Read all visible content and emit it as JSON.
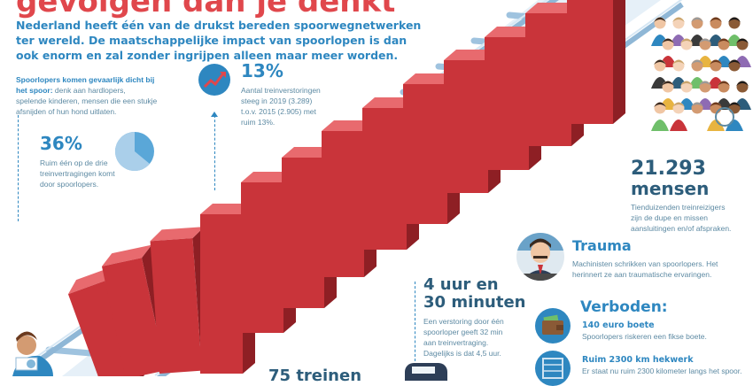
{
  "title": "gevolgen dan je denkt",
  "intro": "Nederland heeft één van de drukst bereden spoorwegnetwerken ter wereld. De maatschappelijke impact van spoorlopen is dan ook enorm en zal zonder ingrijpen alleen maar meer worden.",
  "block_dicht": {
    "bold": "Spoorlopers komen gevaarlijk dicht bij het spoor:",
    "text": " denk aan hardlopers, spelende kinderen, mensen die een stukje afsnijden of hun hond uitlaten."
  },
  "stat_36": {
    "value": "36%",
    "text": "Ruim één op de drie treinvertragingen komt door spoorlopers.",
    "pie_fraction": 0.36
  },
  "stat_13": {
    "value": "13%",
    "text": "Aantal treinverstoringen steeg in 2019 (3.289) t.o.v. 2015 (2.905) met ruim 13%."
  },
  "stat_mensen": {
    "value": "21.293",
    "unit": "mensen",
    "text": "Tienduizenden treinreizigers zijn de dupe en missen aansluitingen en/of afspraken."
  },
  "trauma": {
    "title": "Trauma",
    "text": "Machinisten schrikken van spoorlopers. Het herinnert ze aan traumatische ervaringen."
  },
  "stat_tijd": {
    "line1": "4 uur en",
    "line2": "30 minuten",
    "text": "Een verstoring door één spoorloper geeft 32 min aan treinvertraging. Dagelijks is dat 4,5 uur."
  },
  "verboden": {
    "title": "Verboden:",
    "item1_title": "140 euro boete",
    "item1_text": "Spoorlopers riskeren een fikse boete.",
    "item2_title": "Ruim 2300 km hekwerk",
    "item2_text": "Er staat nu ruim 2300 kilometer langs het spoor."
  },
  "bottom_cut": "75 treinen",
  "colors": {
    "blue": "#2e87c0",
    "red": "#c9343a",
    "title_red": "#e0474c",
    "rail": "#aecce3"
  },
  "icons": [
    "trend-up-icon",
    "pie-chart-icon",
    "people-crowd-icon",
    "train-driver-icon",
    "wallet-icon",
    "fence-icon",
    "person-reading-icon",
    "train-icon"
  ]
}
